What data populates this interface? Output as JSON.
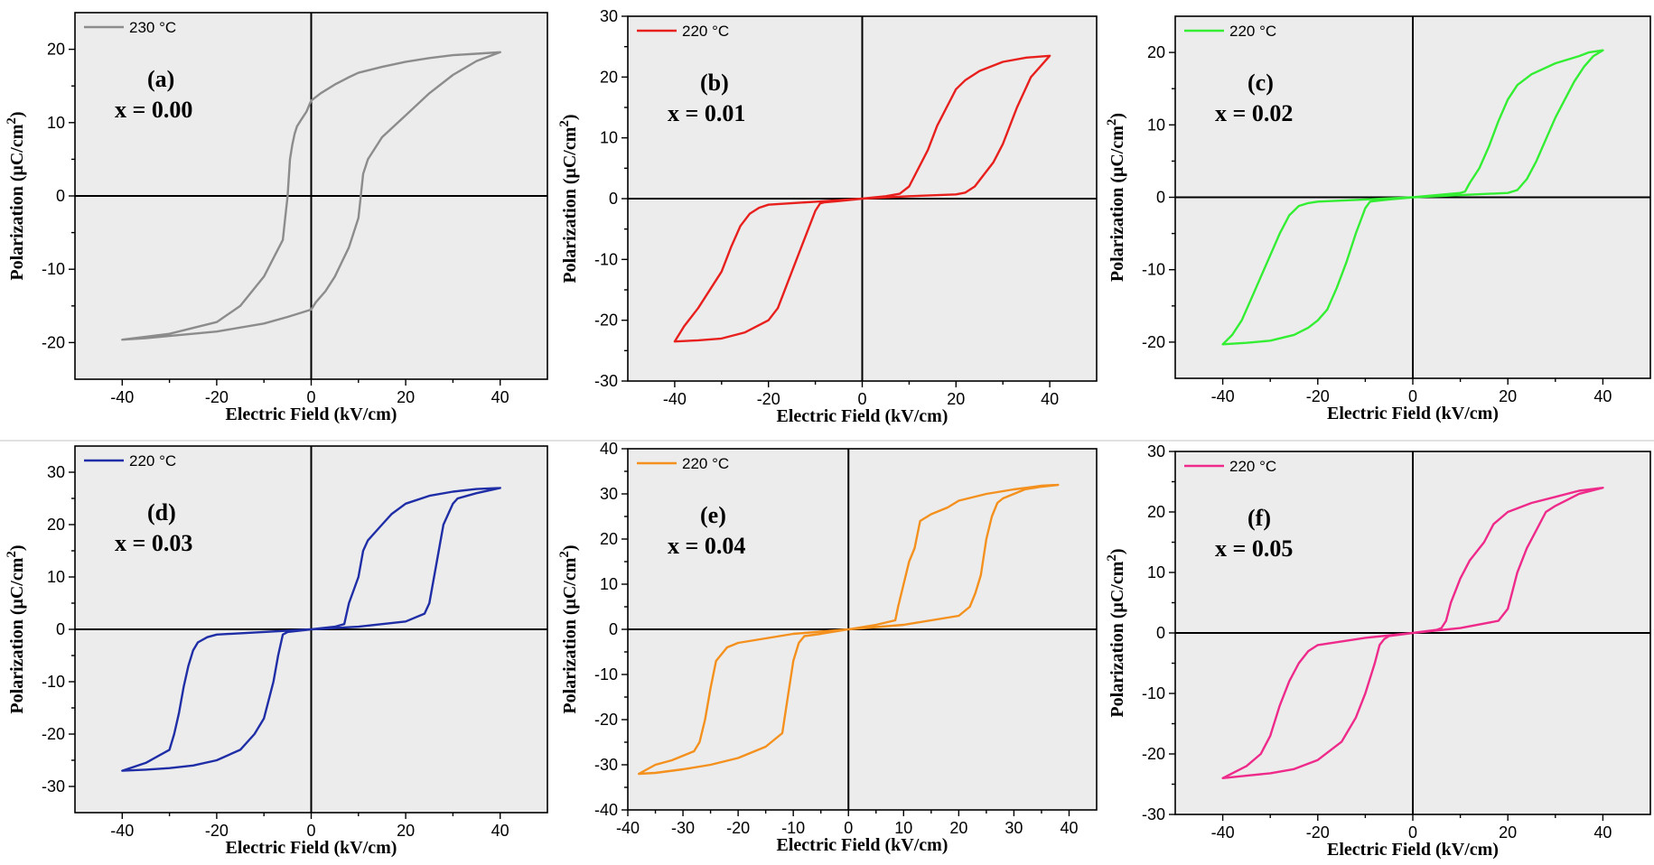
{
  "figure": {
    "divider": true
  },
  "chart_data": [
    {
      "id": "a",
      "type": "line",
      "panel_label": "(a)",
      "composition": "x = 0.00",
      "legend": "230 °C",
      "color": "#8c8c8c",
      "xlabel": "Electric Field (kV/cm)",
      "ylabel": "Polarization (μC/cm2)",
      "xlim": [
        -50,
        50
      ],
      "ylim": [
        -25,
        25
      ],
      "xticks": [
        -40,
        -20,
        0,
        20,
        40
      ],
      "yticks": [
        -20,
        -10,
        0,
        10,
        20
      ],
      "series": [
        {
          "x": [
            40,
            35,
            30,
            25,
            20,
            15,
            10,
            8,
            5,
            2,
            0,
            -1,
            -2,
            -3,
            -3.5,
            -4,
            -4.5,
            -5,
            -5.5,
            -6,
            -10,
            -15,
            -20,
            -30,
            -40,
            -35,
            -30,
            -20,
            -10,
            -5,
            0,
            1,
            3,
            5,
            8,
            10,
            10.5,
            11,
            12,
            15,
            20,
            25,
            30,
            35,
            40
          ],
          "y": [
            19.6,
            19.4,
            19.2,
            18.8,
            18.3,
            17.6,
            16.8,
            16.2,
            15.2,
            14,
            13,
            11.5,
            10.5,
            9.5,
            8.5,
            7,
            5,
            0,
            -3,
            -6,
            -11,
            -15,
            -17.2,
            -18.8,
            -19.6,
            -19.4,
            -19.1,
            -18.5,
            -17.4,
            -16.5,
            -15.5,
            -14.5,
            -13,
            -11,
            -7,
            -3,
            0,
            3,
            5,
            8,
            11,
            14,
            16.5,
            18.4,
            19.6
          ]
        }
      ]
    },
    {
      "id": "b",
      "type": "line",
      "panel_label": "(b)",
      "composition": "x = 0.01",
      "legend": "220 °C",
      "color": "#e8201d",
      "xlabel": "Electric Field (kV/cm)",
      "ylabel": "Polarization (μC/cm2)",
      "xlim": [
        -50,
        50
      ],
      "ylim": [
        -30,
        30
      ],
      "xticks": [
        -40,
        -20,
        0,
        20,
        40
      ],
      "yticks": [
        -30,
        -20,
        -10,
        0,
        10,
        20,
        30
      ],
      "series": [
        {
          "x": [
            40,
            35,
            30,
            25,
            22,
            20,
            18,
            16,
            14,
            12,
            10,
            8,
            5,
            0,
            -5,
            -8,
            -9,
            -10,
            -12,
            -15,
            -18,
            -20,
            -25,
            -30,
            -35,
            -40,
            -38,
            -35,
            -30,
            -28,
            -26,
            -24,
            -22,
            -20,
            -10,
            0,
            10,
            20,
            22,
            24,
            26,
            28,
            30,
            33,
            36,
            40
          ],
          "y": [
            23.5,
            23.2,
            22.5,
            21,
            19.5,
            18,
            15,
            12,
            8,
            5,
            2,
            0.8,
            0.4,
            0,
            -0.4,
            -0.6,
            -0.8,
            -2,
            -6,
            -12,
            -18,
            -20,
            -22,
            -23,
            -23.3,
            -23.5,
            -21,
            -18,
            -12,
            -8,
            -4.5,
            -2.5,
            -1.5,
            -1,
            -0.5,
            0,
            0.4,
            0.7,
            1,
            2,
            4,
            6,
            9,
            15,
            20,
            23.5
          ]
        }
      ]
    },
    {
      "id": "c",
      "type": "line",
      "panel_label": "(c)",
      "composition": "x = 0.02",
      "legend": "220 °C",
      "color": "#33ee33",
      "xlabel": "Electric Field (kV/cm)",
      "ylabel": "Polarization (μC/cm2)",
      "xlim": [
        -50,
        50
      ],
      "ylim": [
        -25,
        25
      ],
      "xticks": [
        -40,
        -20,
        0,
        20,
        40
      ],
      "yticks": [
        -20,
        -10,
        0,
        10,
        20
      ],
      "series": [
        {
          "x": [
            40,
            37,
            35,
            30,
            25,
            22,
            20,
            18,
            16,
            14,
            12,
            11,
            10,
            5,
            0,
            -5,
            -9,
            -10,
            -12,
            -14,
            -16,
            -18,
            -20,
            -22,
            -25,
            -30,
            -35,
            -40,
            -38,
            -36,
            -34,
            -32,
            -30,
            -28,
            -26,
            -24,
            -22,
            -20,
            -10,
            0,
            10,
            20,
            22,
            24,
            26,
            28,
            30,
            32,
            34,
            36,
            38,
            40
          ],
          "y": [
            20.3,
            20,
            19.5,
            18.5,
            17,
            15.5,
            13.5,
            10.5,
            7,
            4,
            2,
            0.8,
            0.6,
            0.3,
            0,
            -0.3,
            -0.6,
            -1.5,
            -5,
            -9,
            -12.5,
            -15.5,
            -17,
            -18,
            -19,
            -19.8,
            -20.1,
            -20.3,
            -19,
            -17,
            -14,
            -11,
            -8,
            -5,
            -2.5,
            -1.2,
            -0.8,
            -0.6,
            -0.3,
            0,
            0.3,
            0.6,
            1,
            2.5,
            5,
            8,
            11,
            13.5,
            16,
            18,
            19.5,
            20.3
          ]
        }
      ]
    },
    {
      "id": "d",
      "type": "line",
      "panel_label": "(d)",
      "composition": "x = 0.03",
      "legend": "220 °C",
      "color": "#1f2ea6",
      "xlabel": "Electric Field (kV/cm)",
      "ylabel": "Polarization (μC/cm2)",
      "xlim": [
        -50,
        50
      ],
      "ylim": [
        -35,
        35
      ],
      "xticks": [
        -40,
        -20,
        0,
        20,
        40
      ],
      "yticks": [
        -30,
        -20,
        -10,
        0,
        10,
        20,
        30
      ],
      "series": [
        {
          "x": [
            40,
            35,
            30,
            25,
            20,
            17,
            15,
            12,
            11,
            10,
            8,
            7,
            5,
            0,
            -5,
            -6,
            -7,
            -8,
            -10,
            -12,
            -15,
            -20,
            -25,
            -30,
            -35,
            -40,
            -35,
            -32,
            -30,
            -29,
            -28,
            -27,
            -26,
            -25,
            -24,
            -22,
            -20,
            -10,
            0,
            10,
            20,
            24,
            25,
            26,
            27,
            28,
            30,
            31,
            35,
            40
          ],
          "y": [
            27,
            26.8,
            26.3,
            25.5,
            24,
            22,
            20,
            17,
            15,
            10,
            5,
            1,
            0.5,
            0,
            -0.5,
            -1,
            -5,
            -10,
            -17,
            -20,
            -23,
            -25,
            -26,
            -26.5,
            -26.8,
            -27,
            -25.5,
            -24,
            -23,
            -20,
            -16,
            -11,
            -7,
            -4,
            -2.5,
            -1.5,
            -1,
            -0.5,
            0,
            0.5,
            1.5,
            3,
            5,
            10,
            15,
            20,
            24,
            25,
            26,
            27
          ]
        }
      ]
    },
    {
      "id": "e",
      "type": "line",
      "panel_label": "(e)",
      "composition": "x = 0.04",
      "legend": "220 °C",
      "color": "#f4901d",
      "xlabel": "Electric Field (kV/cm)",
      "ylabel": "Polarization (μC/cm2)",
      "xlim": [
        -40,
        45
      ],
      "ylim": [
        -40,
        40
      ],
      "xticks": [
        -40,
        -30,
        -20,
        -10,
        0,
        10,
        20,
        30,
        40
      ],
      "yticks": [
        -40,
        -30,
        -20,
        -10,
        0,
        10,
        20,
        30,
        40
      ],
      "series": [
        {
          "x": [
            38,
            35,
            30,
            25,
            20,
            18,
            15,
            13,
            12,
            11,
            10,
            9,
            8.5,
            5,
            0,
            -5,
            -8,
            -9,
            -10,
            -11,
            -12,
            -15,
            -20,
            -25,
            -30,
            -35,
            -38,
            -35,
            -32,
            -28,
            -27,
            -26,
            -25,
            -24,
            -22,
            -20,
            -10,
            0,
            10,
            20,
            22,
            23,
            24,
            25,
            26,
            27,
            28,
            30,
            32,
            35,
            38
          ],
          "y": [
            32,
            31.8,
            31,
            30,
            28.5,
            27,
            25.5,
            24,
            18,
            15,
            10,
            5,
            2,
            1,
            0,
            -1,
            -1.5,
            -3,
            -7,
            -15,
            -23,
            -26,
            -28.5,
            -30,
            -31,
            -31.8,
            -32,
            -30,
            -29,
            -27,
            -25,
            -20,
            -13,
            -7,
            -4,
            -3,
            -1,
            0,
            1,
            3,
            5,
            8,
            12,
            20,
            25,
            28,
            29,
            30,
            31,
            31.6,
            32
          ]
        }
      ]
    },
    {
      "id": "f",
      "type": "line",
      "panel_label": "(f)",
      "composition": "x = 0.05",
      "legend": "220 °C",
      "color": "#ee2a8a",
      "xlabel": "Electric Field (kV/cm)",
      "ylabel": "Polarization (μC/cm2)",
      "xlim": [
        -50,
        50
      ],
      "ylim": [
        -30,
        30
      ],
      "xticks": [
        -40,
        -20,
        0,
        20,
        40
      ],
      "yticks": [
        -30,
        -20,
        -10,
        0,
        10,
        20,
        30
      ],
      "series": [
        {
          "x": [
            40,
            35,
            30,
            25,
            20,
            17,
            15,
            12,
            10,
            8,
            7,
            6,
            5,
            0,
            -5,
            -6,
            -7,
            -8,
            -10,
            -12,
            -15,
            -20,
            -25,
            -30,
            -35,
            -40,
            -35,
            -32,
            -30,
            -28,
            -26,
            -24,
            -22,
            -20,
            -10,
            0,
            10,
            18,
            20,
            21,
            22,
            24,
            26,
            28,
            30,
            35,
            40
          ],
          "y": [
            24,
            23.5,
            22.5,
            21.5,
            20,
            18,
            15,
            12,
            9,
            5,
            2,
            0.8,
            0.5,
            0,
            -0.5,
            -1,
            -2,
            -5,
            -10,
            -14,
            -18,
            -21,
            -22.5,
            -23.2,
            -23.6,
            -24,
            -22,
            -20,
            -17,
            -12,
            -8,
            -5,
            -3,
            -2,
            -0.8,
            0,
            0.8,
            2,
            4,
            7,
            10,
            14,
            17,
            20,
            21,
            23,
            24
          ]
        }
      ]
    }
  ]
}
